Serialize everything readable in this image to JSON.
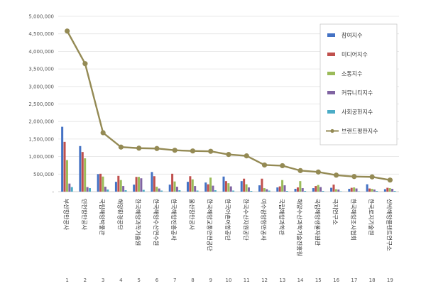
{
  "chart_data": {
    "type": "bar",
    "ylim": [
      0,
      5000000
    ],
    "yticks": [
      "-",
      "500,000",
      "1,000,000",
      "1,500,000",
      "2,000,000",
      "2,500,000",
      "3,000,000",
      "3,500,000",
      "4,000,000",
      "4,500,000",
      "5,000,000"
    ],
    "grid": true,
    "legend_position": "right",
    "categories": [
      "부산항만공사",
      "인천항만공사",
      "국립해양박물관",
      "해양환경공단",
      "한국해양과학기술원",
      "한국해양수산연수원",
      "한국해양진흥공사",
      "울산항만공사",
      "한국해양교통안전공단",
      "한국어촌어항공단",
      "한국수산자원공단",
      "여수광양항만공사",
      "국립해양과학관",
      "해양수산과학기술진흥원",
      "국립해양생물자원관",
      "극지연구소",
      "한국해양조사협회",
      "한국로지기술원",
      "선박해양플랜트연구소"
    ],
    "index_labels": [
      "1",
      "2",
      "3",
      "4",
      "5",
      "6",
      "7",
      "8",
      "9",
      "10",
      "11",
      "12",
      "13",
      "14",
      "15",
      "16",
      "17",
      "18",
      "19"
    ],
    "series": [
      {
        "name": "참여지수",
        "type": "bar",
        "color": "#4472C4",
        "values": [
          1850000,
          1300000,
          500000,
          280000,
          200000,
          560000,
          200000,
          280000,
          260000,
          430000,
          300000,
          180000,
          120000,
          80000,
          100000,
          110000,
          80000,
          210000,
          70000
        ]
      },
      {
        "name": "미디어지수",
        "type": "bar",
        "color": "#C0504D",
        "values": [
          1420000,
          1130000,
          510000,
          450000,
          420000,
          440000,
          510000,
          440000,
          210000,
          300000,
          370000,
          370000,
          150000,
          120000,
          160000,
          200000,
          110000,
          90000,
          110000
        ]
      },
      {
        "name": "소통지수",
        "type": "bar",
        "color": "#9BBB59",
        "values": [
          900000,
          950000,
          430000,
          330000,
          420000,
          140000,
          290000,
          350000,
          400000,
          240000,
          210000,
          100000,
          330000,
          300000,
          190000,
          70000,
          120000,
          80000,
          100000
        ]
      },
      {
        "name": "커뮤니티지수",
        "type": "bar",
        "color": "#8064A2",
        "values": [
          230000,
          130000,
          140000,
          160000,
          380000,
          90000,
          140000,
          160000,
          170000,
          150000,
          120000,
          70000,
          180000,
          100000,
          130000,
          60000,
          90000,
          60000,
          80000
        ]
      },
      {
        "name": "사회공헌지수",
        "type": "bar",
        "color": "#4BACC6",
        "values": [
          130000,
          100000,
          60000,
          40000,
          50000,
          30000,
          40000,
          30000,
          40000,
          30000,
          20000,
          30000,
          20000,
          20000,
          20000,
          10000,
          10000,
          20000,
          20000
        ]
      },
      {
        "name": "브랜드평판지수",
        "type": "line",
        "color": "#948A54",
        "values": [
          4580000,
          3650000,
          1680000,
          1270000,
          1240000,
          1230000,
          1180000,
          1160000,
          1150000,
          1060000,
          1020000,
          760000,
          740000,
          600000,
          560000,
          470000,
          430000,
          420000,
          330000
        ]
      }
    ]
  }
}
